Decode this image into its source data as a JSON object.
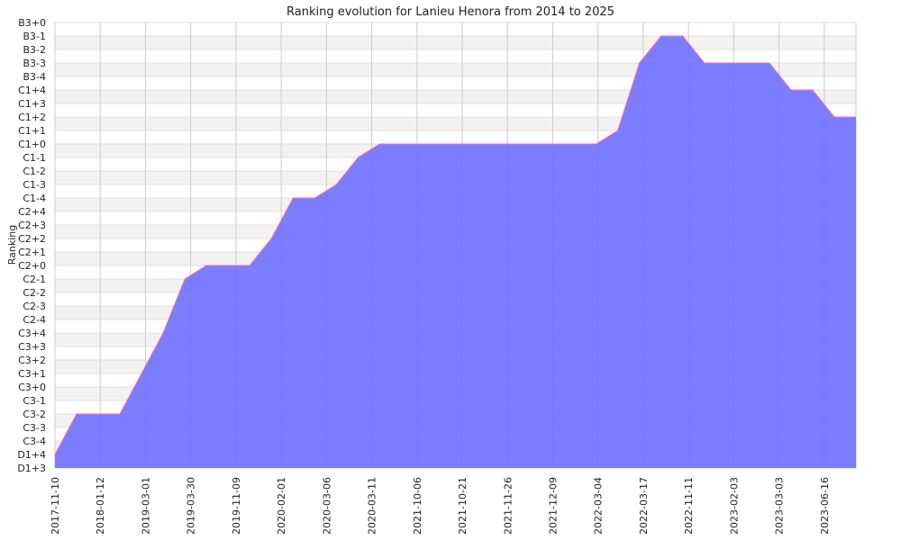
{
  "chart_data": {
    "type": "area",
    "title": "Ranking evolution for Lanieu Henora from 2014 to 2025",
    "xlabel": "",
    "ylabel": "Ranking",
    "grid": true,
    "y_categories": [
      "D1+3",
      "D1+4",
      "C3-4",
      "C3-3",
      "C3-2",
      "C3-1",
      "C3+0",
      "C3+1",
      "C3+2",
      "C3+3",
      "C3+4",
      "C2-4",
      "C2-3",
      "C2-2",
      "C2-1",
      "C2+0",
      "C2+1",
      "C2+2",
      "C2+3",
      "C2+4",
      "C1-4",
      "C1-3",
      "C1-2",
      "C1-1",
      "C1+0",
      "C1+1",
      "C1+2",
      "C1+3",
      "C1+4",
      "B3-4",
      "B3-3",
      "B3-2",
      "B3-1",
      "B3+0"
    ],
    "x_tick_labels": [
      "2017-11-10",
      "2018-01-12",
      "2019-03-01",
      "2019-03-30",
      "2019-11-09",
      "2020-02-01",
      "2020-03-06",
      "2020-03-11",
      "2021-10-06",
      "2021-10-21",
      "2021-11-26",
      "2021-12-09",
      "2022-03-04",
      "2022-03-17",
      "2022-11-11",
      "2023-02-03",
      "2023-03-03",
      "2023-06-16"
    ],
    "series": [
      {
        "values": [
          "D1+4",
          "C3-2",
          "C3-2",
          "C3-2",
          "C3+1",
          "C3+4",
          "C2-1",
          "C2+0",
          "C2+0",
          "C2+0",
          "C2+2",
          "C1-4",
          "C1-4",
          "C1-3",
          "C1-1",
          "C1+0",
          "C1+0",
          "C1+0",
          "C1+0",
          "C1+0",
          "C1+0",
          "C1+0",
          "C1+0",
          "C1+0",
          "C1+0",
          "C1+0",
          "C1+1",
          "B3-3",
          "B3-1",
          "B3-1",
          "B3-3",
          "B3-3",
          "B3-3",
          "B3-3",
          "C1+4",
          "C1+4",
          "C1+2",
          "C1+2"
        ]
      }
    ],
    "colors": {
      "fill": "#6b6bff",
      "line": "#ff6b9b",
      "grid": "#cccccc",
      "band": "#f2f2f2"
    }
  }
}
